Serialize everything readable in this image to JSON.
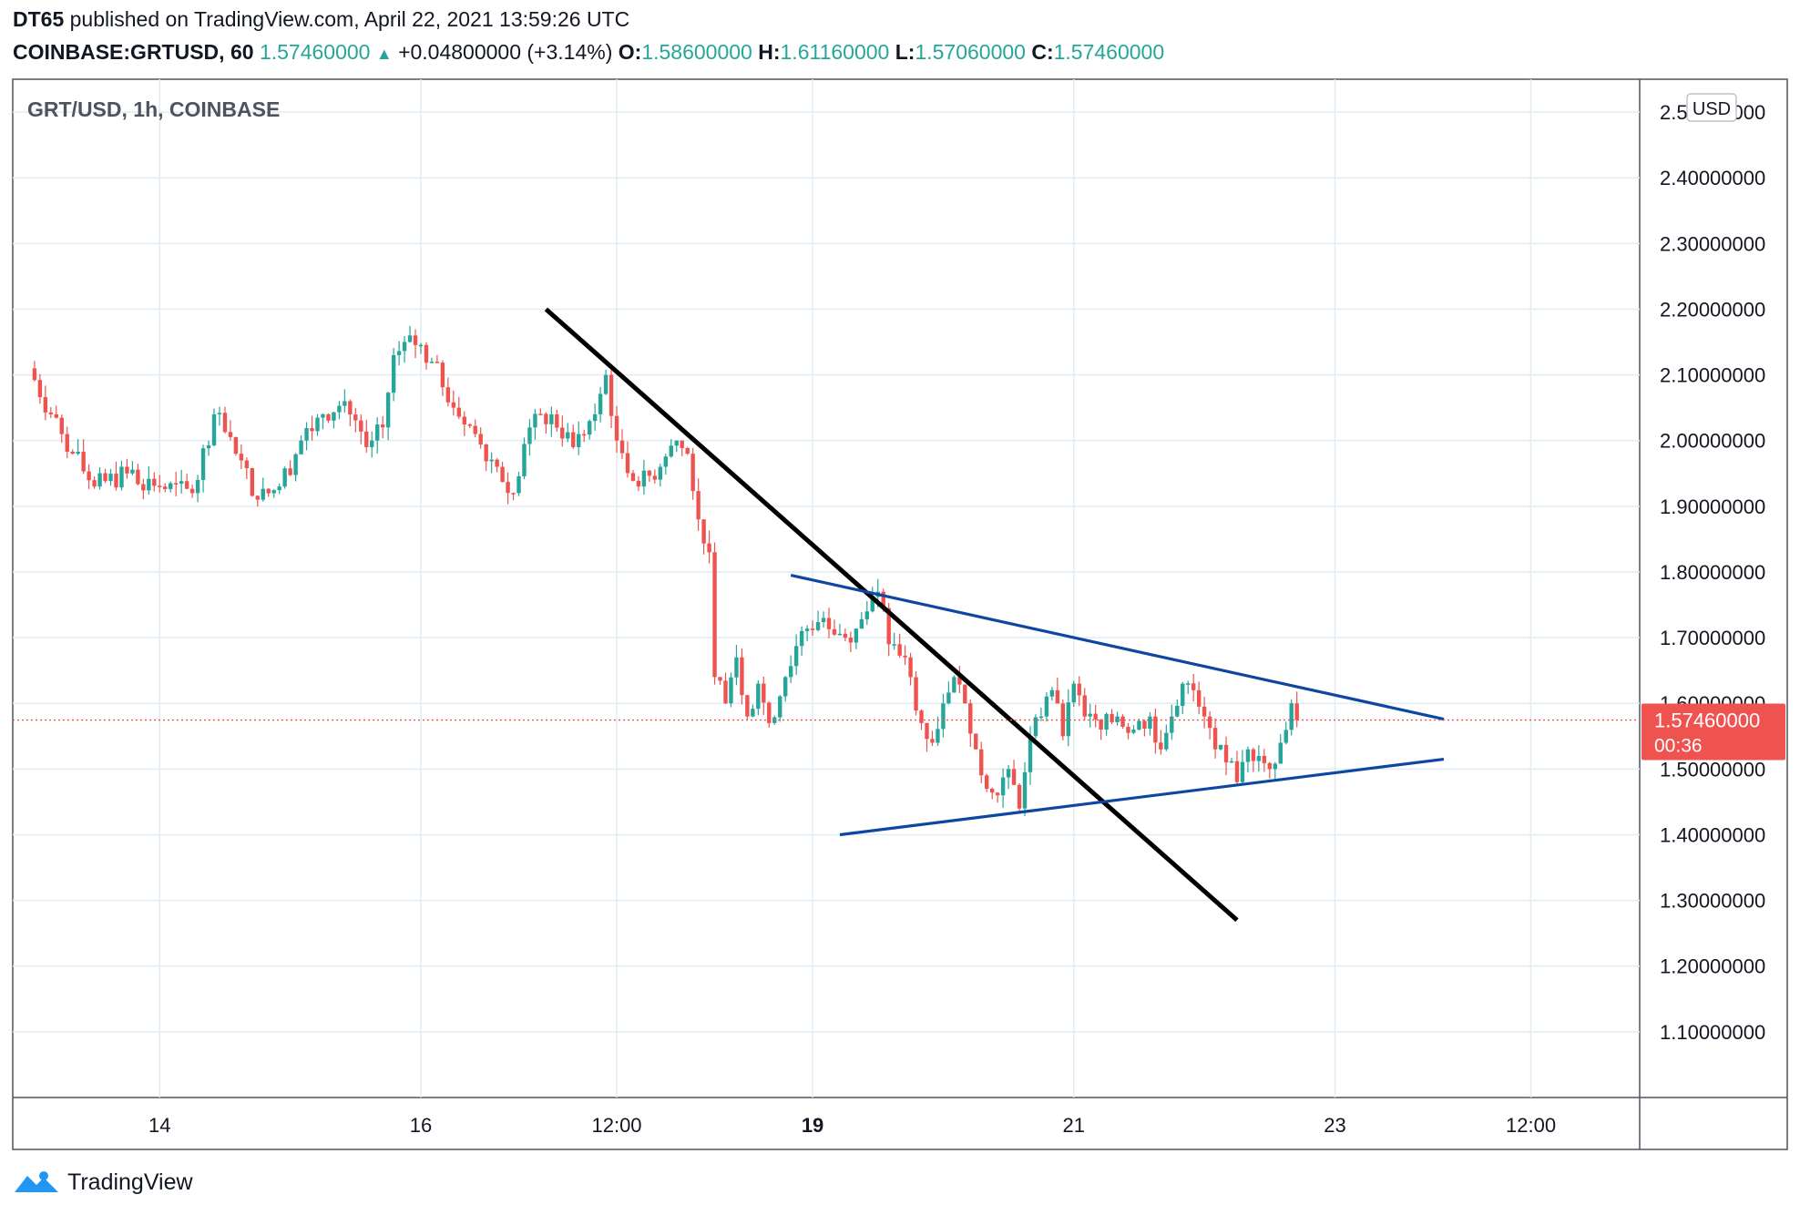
{
  "header": {
    "author": "DT65",
    "published_text": "published on TradingView.com, April 22, 2021 13:59:26 UTC",
    "symbol": "COINBASE:GRTUSD, 60",
    "last": "1.57460000",
    "change": "+0.04800000 (+3.14%)",
    "o_label": "O:",
    "o_value": "1.58600000",
    "h_label": "H:",
    "h_value": "1.61160000",
    "l_label": "L:",
    "l_value": "1.57060000",
    "c_label": "C:",
    "c_value": "1.57460000"
  },
  "footer": {
    "brand": "TradingView"
  },
  "colors": {
    "up": "#26a69a",
    "down": "#ef5350",
    "trendline": "#000000",
    "triangle": "#0d47a1",
    "grid": "#e1ecf2",
    "price_tag": "#ef5350"
  },
  "chart_data": {
    "type": "candlestick",
    "title": "GRT/USD, 1h, COINBASE",
    "currency_label": "USD",
    "ylim": [
      1.0,
      2.55
    ],
    "y_ticks": [
      "2.50000000",
      "2.40000000",
      "2.30000000",
      "2.20000000",
      "2.10000000",
      "2.00000000",
      "1.90000000",
      "1.80000000",
      "1.70000000",
      "1.60000000",
      "1.50000000",
      "1.40000000",
      "1.30000000",
      "1.20000000",
      "1.10000000"
    ],
    "y_tick_values": [
      2.5,
      2.4,
      2.3,
      2.2,
      2.1,
      2.0,
      1.9,
      1.8,
      1.7,
      1.6,
      1.5,
      1.4,
      1.3,
      1.2,
      1.1
    ],
    "x_ticks": [
      {
        "label": "14",
        "value": 24
      },
      {
        "label": "16",
        "value": 72
      },
      {
        "label": "12:00",
        "value": 108
      },
      {
        "label": "19",
        "value": 144
      },
      {
        "label": "21",
        "value": 192
      },
      {
        "label": "23",
        "value": 240
      },
      {
        "label": "12:00",
        "value": 276
      }
    ],
    "x_range": [
      -3,
      296
    ],
    "current_price": {
      "value": 1.5746,
      "label": "1.57460000",
      "countdown": "00:36"
    },
    "trendlines": [
      {
        "name": "descending-trendline",
        "color": "trendline",
        "from": [
          95,
          2.2
        ],
        "to": [
          222,
          1.27
        ]
      },
      {
        "name": "triangle-upper",
        "color": "triangle",
        "from": [
          140,
          1.795
        ],
        "to": [
          260,
          1.576
        ]
      },
      {
        "name": "triangle-lower",
        "color": "triangle",
        "from": [
          149,
          1.4
        ],
        "to": [
          260,
          1.515
        ]
      }
    ],
    "key_points": [
      {
        "x": 0,
        "close": 2.11
      },
      {
        "x": 4,
        "close": 2.04
      },
      {
        "x": 8,
        "close": 1.98
      },
      {
        "x": 12,
        "close": 1.93
      },
      {
        "x": 18,
        "close": 1.95
      },
      {
        "x": 24,
        "close": 1.93
      },
      {
        "x": 30,
        "close": 1.92
      },
      {
        "x": 34,
        "close": 2.04
      },
      {
        "x": 38,
        "close": 1.98
      },
      {
        "x": 42,
        "close": 1.91
      },
      {
        "x": 46,
        "close": 1.93
      },
      {
        "x": 50,
        "close": 2.0
      },
      {
        "x": 54,
        "close": 2.04
      },
      {
        "x": 58,
        "close": 2.06
      },
      {
        "x": 62,
        "close": 1.99
      },
      {
        "x": 65,
        "close": 2.02
      },
      {
        "x": 67,
        "close": 2.13
      },
      {
        "x": 70,
        "close": 2.16
      },
      {
        "x": 74,
        "close": 2.12
      },
      {
        "x": 78,
        "close": 2.05
      },
      {
        "x": 82,
        "close": 2.01
      },
      {
        "x": 86,
        "close": 1.96
      },
      {
        "x": 89,
        "close": 1.92
      },
      {
        "x": 92,
        "close": 2.02
      },
      {
        "x": 96,
        "close": 2.04
      },
      {
        "x": 100,
        "close": 1.99
      },
      {
        "x": 104,
        "close": 2.04
      },
      {
        "x": 106,
        "close": 2.1
      },
      {
        "x": 108,
        "close": 2.0
      },
      {
        "x": 112,
        "close": 1.93
      },
      {
        "x": 116,
        "close": 1.96
      },
      {
        "x": 119,
        "close": 2.0
      },
      {
        "x": 121,
        "close": 1.98
      },
      {
        "x": 123,
        "close": 1.88
      },
      {
        "x": 125,
        "close": 1.83
      },
      {
        "x": 126,
        "close": 1.64
      },
      {
        "x": 128,
        "close": 1.6
      },
      {
        "x": 130,
        "close": 1.67
      },
      {
        "x": 132,
        "close": 1.58
      },
      {
        "x": 134,
        "close": 1.63
      },
      {
        "x": 136,
        "close": 1.57
      },
      {
        "x": 139,
        "close": 1.64
      },
      {
        "x": 142,
        "close": 1.71
      },
      {
        "x": 146,
        "close": 1.73
      },
      {
        "x": 150,
        "close": 1.7
      },
      {
        "x": 154,
        "close": 1.74
      },
      {
        "x": 156,
        "close": 1.77
      },
      {
        "x": 158,
        "close": 1.69
      },
      {
        "x": 161,
        "close": 1.67
      },
      {
        "x": 164,
        "close": 1.57
      },
      {
        "x": 166,
        "close": 1.54
      },
      {
        "x": 168,
        "close": 1.6
      },
      {
        "x": 170,
        "close": 1.64
      },
      {
        "x": 172,
        "close": 1.6
      },
      {
        "x": 174,
        "close": 1.53
      },
      {
        "x": 176,
        "close": 1.47
      },
      {
        "x": 178,
        "close": 1.46
      },
      {
        "x": 180,
        "close": 1.5
      },
      {
        "x": 182,
        "close": 1.44
      },
      {
        "x": 184,
        "close": 1.55
      },
      {
        "x": 186,
        "close": 1.58
      },
      {
        "x": 188,
        "close": 1.62
      },
      {
        "x": 190,
        "close": 1.55
      },
      {
        "x": 192,
        "close": 1.63
      },
      {
        "x": 194,
        "close": 1.58
      },
      {
        "x": 197,
        "close": 1.56
      },
      {
        "x": 200,
        "close": 1.58
      },
      {
        "x": 203,
        "close": 1.56
      },
      {
        "x": 206,
        "close": 1.58
      },
      {
        "x": 208,
        "close": 1.53
      },
      {
        "x": 210,
        "close": 1.58
      },
      {
        "x": 212,
        "close": 1.63
      },
      {
        "x": 214,
        "close": 1.62
      },
      {
        "x": 216,
        "close": 1.58
      },
      {
        "x": 218,
        "close": 1.53
      },
      {
        "x": 220,
        "close": 1.51
      },
      {
        "x": 222,
        "close": 1.48
      },
      {
        "x": 224,
        "close": 1.53
      },
      {
        "x": 226,
        "close": 1.52
      },
      {
        "x": 228,
        "close": 1.5
      },
      {
        "x": 230,
        "close": 1.54
      },
      {
        "x": 232,
        "close": 1.6
      },
      {
        "x": 233,
        "close": 1.5746
      }
    ]
  }
}
